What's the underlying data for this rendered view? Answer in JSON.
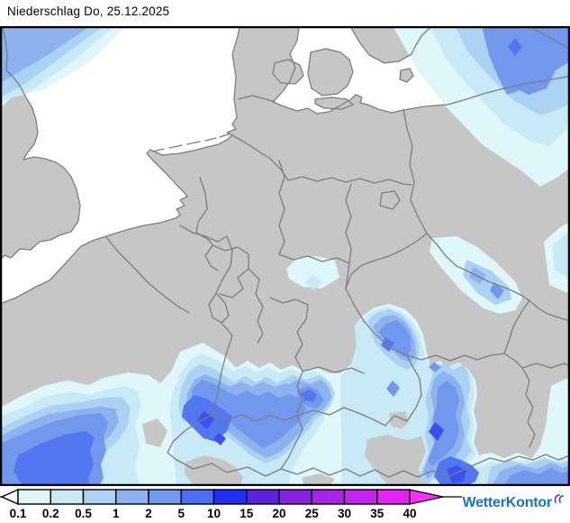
{
  "title": "Niederschlag Do, 25.12.2025",
  "legend": {
    "values": [
      "0.1",
      "0.2",
      "0.5",
      "1",
      "2",
      "5",
      "10",
      "15",
      "20",
      "25",
      "30",
      "35",
      "40"
    ],
    "segment_colors": [
      "#dff7fa",
      "#c8eaf7",
      "#abd2f3",
      "#8db2ef",
      "#7198ec",
      "#4a6ef4",
      "#1e30f5",
      "#5a22dd",
      "#8822e2",
      "#a722ea",
      "#c722f1",
      "#e722f8"
    ],
    "overflow_arrow_color": "#fb30fb",
    "underflow_color": "#ffffff",
    "outline_color": "#000000"
  },
  "map": {
    "colors": {
      "sea": "#ffffff",
      "land": "#c6c6c6",
      "boundaries": "#7d7d7d",
      "frame": "#000000",
      "precip_levels": {
        "0.1": "#dff7fa",
        "0.2": "#c8eaf7",
        "0.5": "#abd2f3",
        "1": "#8db2ef",
        "2": "#7198ec",
        "5": "#5377f0",
        "10": "#3a50f2"
      }
    }
  },
  "logo": {
    "text": "WetterKontor",
    "color": "#1577b5"
  }
}
